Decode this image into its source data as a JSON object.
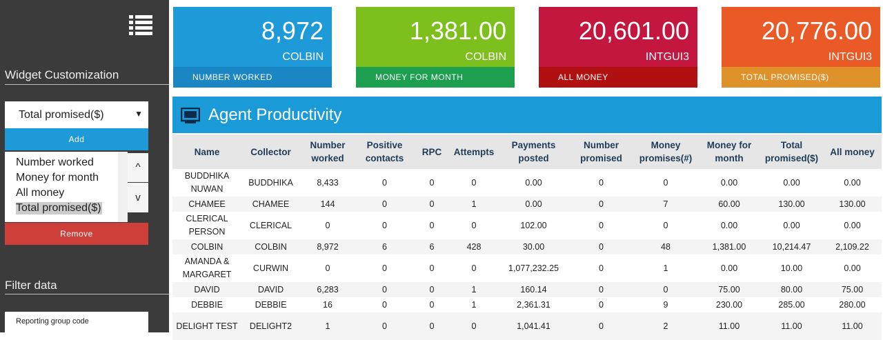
{
  "sidebar": {
    "widget_title": "Widget Customization",
    "select_value": "Total promised($)",
    "add_button": "Add",
    "list_items": [
      "Number worked",
      "Money for month",
      "All money",
      "Total promised($)"
    ],
    "up_button": "^",
    "down_button": "v",
    "remove_button": "Remove",
    "filter_title": "Filter data",
    "filter_field": "Reporting group code"
  },
  "cards": [
    {
      "value": "8,972",
      "sub": "COLBIN",
      "label": "NUMBER WORKED"
    },
    {
      "value": "1,381.00",
      "sub": "COLBIN",
      "label": "MONEY FOR MONTH"
    },
    {
      "value": "20,601.00",
      "sub": "INTGUI3",
      "label": "ALL MONEY"
    },
    {
      "value": "20,776.00",
      "sub": "INTGUI3",
      "label": "TOTAL PROMISED($)"
    }
  ],
  "table": {
    "title": "Agent Productivity",
    "headers": [
      "Name",
      "Collector",
      "Number worked",
      "Positive contacts",
      "RPC",
      "Attempts",
      "Payments posted",
      "Number promised",
      "Money promises(#)",
      "Money for month",
      "Total promised($)",
      "All money"
    ],
    "rows": [
      [
        "BUDDHIKA NUWAN",
        "BUDDHIKA",
        "8,433",
        "0",
        "0",
        "0",
        "0.00",
        "0",
        "0",
        "0.00",
        "0.00",
        "0.00"
      ],
      [
        "CHAMEE",
        "CHAMEE",
        "144",
        "0",
        "0",
        "1",
        "0.00",
        "0",
        "7",
        "60.00",
        "130.00",
        "130.00"
      ],
      [
        "CLERICAL PERSON",
        "CLERICAL",
        "0",
        "0",
        "0",
        "0",
        "102.00",
        "0",
        "0",
        "0.00",
        "0.00",
        "0.00"
      ],
      [
        "COLBIN",
        "COLBIN",
        "8,972",
        "6",
        "6",
        "428",
        "30.00",
        "0",
        "48",
        "1,381.00",
        "10,214.47",
        "2,109.22"
      ],
      [
        "AMANDA & MARGARET",
        "CURWIN",
        "0",
        "0",
        "0",
        "0",
        "1,077,232.25",
        "0",
        "1",
        "0.00",
        "10.00",
        "0.00"
      ],
      [
        "DAVID",
        "DAVID",
        "6,283",
        "0",
        "0",
        "1",
        "160.14",
        "0",
        "0",
        "75.00",
        "80.00",
        "75.00"
      ],
      [
        "DEBBIE",
        "DEBBIE",
        "16",
        "0",
        "0",
        "1",
        "2,361.31",
        "0",
        "9",
        "230.00",
        "285.00",
        "280.00"
      ],
      [
        "DELIGHT TEST",
        "DELIGHT2",
        "1",
        "0",
        "0",
        "0",
        "1,041.41",
        "0",
        "2",
        "11.00",
        "11.00",
        "11.00"
      ]
    ]
  }
}
